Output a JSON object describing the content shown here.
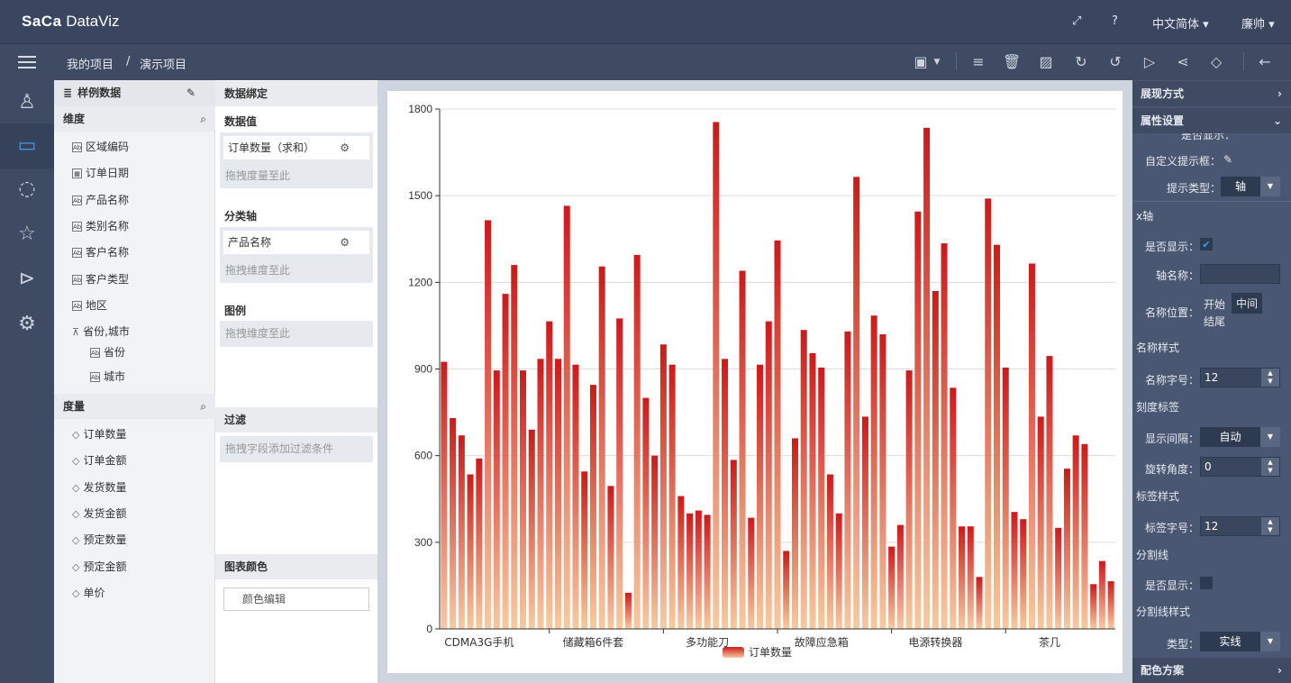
{
  "app": {
    "logo_a": "Sa",
    "logo_b": "Ca",
    "logo_c": " DataViz"
  },
  "header": {
    "language": "中文简体 ▾",
    "user": "廉帅 ▾"
  },
  "breadcrumb": {
    "root": "我的项目",
    "sep": "/",
    "current": "演示项目"
  },
  "fields": {
    "dataset": "样例数据",
    "dimension_label": "维度",
    "dimensions": [
      "区域编码",
      "订单日期",
      "产品名称",
      "类别名称",
      "客户名称",
      "客户类型",
      "地区"
    ],
    "hierarchy": "省份,城市",
    "hierarchy_children": [
      "省份",
      "城市"
    ],
    "measure_label": "度量",
    "measures": [
      "订单数量",
      "订单金额",
      "发货数量",
      "发货金额",
      "预定数量",
      "预定金额",
      "单价"
    ]
  },
  "binding": {
    "title": "数据绑定",
    "value_label": "数据值",
    "value_item": "订单数量（求和）",
    "value_drop": "拖拽度量至此",
    "axis_label": "分类轴",
    "axis_item": "产品名称",
    "axis_drop": "拖拽维度至此",
    "legend_label": "图例",
    "legend_drop": "拖拽维度至此",
    "filter_label": "过滤",
    "filter_drop": "拖拽字段添加过滤条件",
    "color_label": "图表颜色",
    "color_button": "颜色编辑"
  },
  "props": {
    "display_mode": "展现方式",
    "attr_settings": "属性设置",
    "partial": "是否显示：",
    "custom_tooltip": "自定义提示框：",
    "tooltip_type_label": "提示类型：",
    "tooltip_type": "轴",
    "xaxis_label": "x轴",
    "show_label": "是否显示：",
    "axis_name_label": "轴名称：",
    "name_pos_label": "名称位置：",
    "name_pos_start": "开始",
    "name_pos_mid": "中间",
    "name_pos_end": "结尾",
    "name_style": "名称样式",
    "name_size_label": "名称字号：",
    "name_size": "12",
    "tick_label": "刻度标签",
    "interval_label": "显示间隔：",
    "interval": "自动",
    "rotate_label": "旋转角度：",
    "rotate": "0",
    "label_style": "标签样式",
    "label_size_label": "标签字号：",
    "label_size": "12",
    "split_line": "分割线",
    "split_show_label": "是否显示：",
    "split_style": "分割线样式",
    "split_type_label": "类型：",
    "split_type": "实线",
    "color_scheme": "配色方案"
  },
  "chart_data": {
    "type": "bar",
    "series": [
      {
        "name": "订单数量",
        "values": [
          925,
          730,
          670,
          535,
          590,
          1415,
          895,
          1160,
          1260,
          895,
          690,
          935,
          1065,
          935,
          1465,
          915,
          545,
          845,
          1255,
          495,
          1075,
          125,
          1295,
          800,
          600,
          985,
          915,
          460,
          400,
          410,
          395,
          1755,
          935,
          585,
          1240,
          385,
          915,
          1065,
          1345,
          270,
          660,
          1035,
          955,
          905,
          535,
          400,
          1030,
          1565,
          735,
          1085,
          1020,
          285,
          360,
          895,
          1445,
          1735,
          1170,
          1335,
          835,
          355,
          355,
          180,
          1490,
          1330,
          905,
          405,
          380,
          1265,
          735,
          945,
          350,
          555,
          670,
          640,
          155,
          235,
          165
        ]
      }
    ],
    "x_tick_labels": [
      "CDMA3G手机",
      "储藏箱6件套",
      "多功能刀",
      "故障应急箱",
      "电源转换器",
      "茶几"
    ],
    "y_ticks": [
      0,
      300,
      600,
      900,
      1200,
      1500,
      1800
    ],
    "ylim": [
      0,
      1800
    ],
    "legend_placement": "bottom-center",
    "grid": true,
    "colors": {
      "top": "#cc1a1a",
      "bottom": "#f8caa0"
    }
  }
}
